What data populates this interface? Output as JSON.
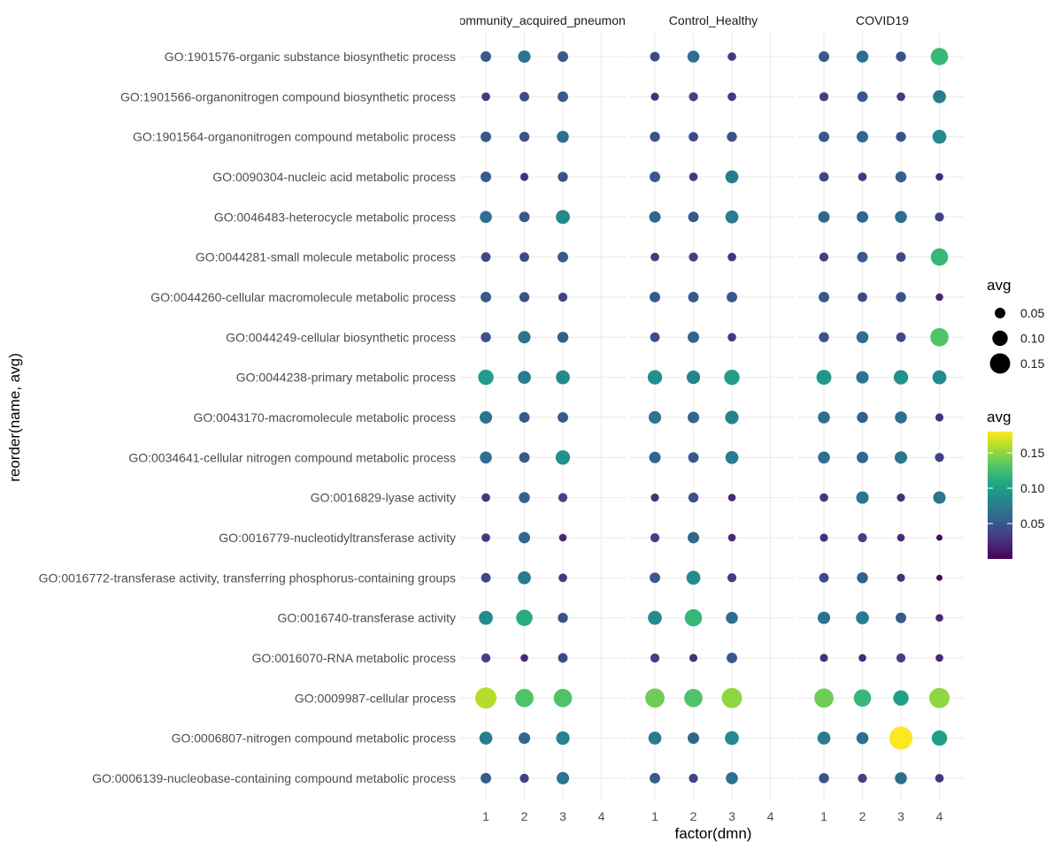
{
  "chart_data": {
    "type": "scatter",
    "xlabel": "factor(dmn)",
    "ylabel": "reorder(name, avg)",
    "x_categories": [
      "1",
      "2",
      "3",
      "4"
    ],
    "facets": [
      "Community_acquired_pneumonia",
      "Control_Healthy",
      "COVID19"
    ],
    "terms": [
      "GO:1901576-organic substance biosynthetic process",
      "GO:1901566-organonitrogen compound biosynthetic process",
      "GO:1901564-organonitrogen compound metabolic process",
      "GO:0090304-nucleic acid metabolic process",
      "GO:0046483-heterocycle metabolic process",
      "GO:0044281-small molecule metabolic process",
      "GO:0044260-cellular macromolecule metabolic process",
      "GO:0044249-cellular biosynthetic process",
      "GO:0044238-primary metabolic process",
      "GO:0043170-macromolecule metabolic process",
      "GO:0034641-cellular nitrogen compound metabolic process",
      "GO:0016829-lyase activity",
      "GO:0016779-nucleotidyltransferase activity",
      "GO:0016772-transferase activity, transferring phosphorus-containing groups",
      "GO:0016740-transferase activity",
      "GO:0016070-RNA metabolic process",
      "GO:0009987-cellular process",
      "GO:0006807-nitrogen compound metabolic process",
      "GO:0006139-nucleobase-containing compound metabolic process"
    ],
    "values": {
      "Community_acquired_pneumonia": [
        [
          0.05,
          0.07,
          0.05,
          null
        ],
        [
          0.03,
          0.04,
          0.05,
          null
        ],
        [
          0.05,
          0.045,
          0.065,
          null
        ],
        [
          0.05,
          0.025,
          0.045,
          null
        ],
        [
          0.065,
          0.05,
          0.085,
          null
        ],
        [
          0.04,
          0.04,
          0.05,
          null
        ],
        [
          0.05,
          0.045,
          0.035,
          null
        ],
        [
          0.045,
          0.07,
          0.055,
          null
        ],
        [
          0.1,
          0.075,
          0.085,
          null
        ],
        [
          0.07,
          0.05,
          0.05,
          null
        ],
        [
          0.065,
          0.05,
          0.09,
          null
        ],
        [
          0.03,
          0.055,
          0.035,
          null
        ],
        [
          0.03,
          0.06,
          0.02,
          null
        ],
        [
          0.04,
          0.075,
          0.03,
          null
        ],
        [
          0.085,
          0.11,
          0.045,
          null
        ],
        [
          0.035,
          0.02,
          0.04,
          null
        ],
        [
          0.16,
          0.13,
          0.13,
          null
        ],
        [
          0.075,
          0.06,
          0.08,
          null
        ],
        [
          0.05,
          0.035,
          0.07,
          null
        ]
      ],
      "Control_Healthy": [
        [
          0.04,
          0.065,
          0.03,
          null
        ],
        [
          0.025,
          0.035,
          0.03,
          null
        ],
        [
          0.045,
          0.04,
          0.045,
          null
        ],
        [
          0.05,
          0.03,
          0.075,
          null
        ],
        [
          0.06,
          0.05,
          0.075,
          null
        ],
        [
          0.03,
          0.035,
          0.03,
          null
        ],
        [
          0.05,
          0.05,
          0.05,
          null
        ],
        [
          0.04,
          0.06,
          0.03,
          null
        ],
        [
          0.09,
          0.08,
          0.1,
          null
        ],
        [
          0.07,
          0.06,
          0.08,
          null
        ],
        [
          0.06,
          0.05,
          0.075,
          null
        ],
        [
          0.025,
          0.045,
          0.02,
          null
        ],
        [
          0.035,
          0.06,
          0.02,
          null
        ],
        [
          0.05,
          0.085,
          0.035,
          null
        ],
        [
          0.085,
          0.12,
          0.065,
          null
        ],
        [
          0.035,
          0.025,
          0.05,
          null
        ],
        [
          0.14,
          0.13,
          0.15,
          null
        ],
        [
          0.075,
          0.06,
          0.085,
          null
        ],
        [
          0.05,
          0.035,
          0.065,
          null
        ]
      ],
      "COVID19": [
        [
          0.05,
          0.065,
          0.045,
          0.12
        ],
        [
          0.035,
          0.05,
          0.03,
          0.075
        ],
        [
          0.05,
          0.06,
          0.045,
          0.085
        ],
        [
          0.04,
          0.03,
          0.055,
          0.02
        ],
        [
          0.06,
          0.06,
          0.065,
          0.035
        ],
        [
          0.035,
          0.05,
          0.04,
          0.12
        ],
        [
          0.05,
          0.04,
          0.045,
          0.02
        ],
        [
          0.045,
          0.065,
          0.04,
          0.13
        ],
        [
          0.095,
          0.07,
          0.09,
          0.085
        ],
        [
          0.065,
          0.055,
          0.065,
          0.025
        ],
        [
          0.065,
          0.06,
          0.07,
          0.035
        ],
        [
          0.03,
          0.07,
          0.025,
          0.07
        ],
        [
          0.025,
          0.035,
          0.02,
          0.005
        ],
        [
          0.04,
          0.055,
          0.025,
          0.005
        ],
        [
          0.07,
          0.075,
          0.05,
          0.02
        ],
        [
          0.025,
          0.02,
          0.035,
          0.02
        ],
        [
          0.14,
          0.12,
          0.1,
          0.15
        ],
        [
          0.075,
          0.065,
          0.18,
          0.1
        ],
        [
          0.045,
          0.035,
          0.065,
          0.03
        ]
      ]
    },
    "size_legend": {
      "title": "avg",
      "breaks": [
        0.05,
        0.1,
        0.15
      ],
      "labels": [
        "0.05",
        "0.10",
        "0.15"
      ]
    },
    "color_legend": {
      "title": "avg",
      "range": [
        0.0,
        0.18
      ],
      "breaks": [
        0.05,
        0.1,
        0.15
      ],
      "labels": [
        "0.05",
        "0.10",
        "0.15"
      ],
      "palette": "viridis"
    },
    "grid": true,
    "legend_position": "right"
  }
}
